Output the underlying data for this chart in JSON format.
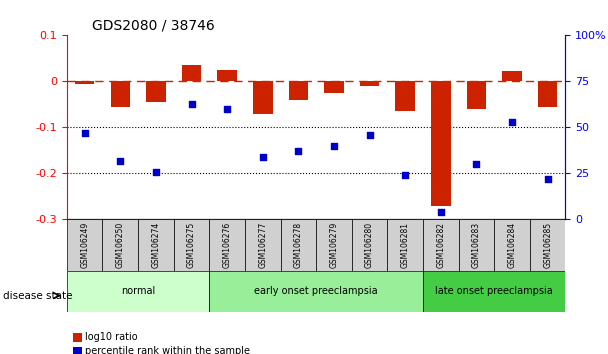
{
  "title": "GDS2080 / 38746",
  "samples": [
    "GSM106249",
    "GSM106250",
    "GSM106274",
    "GSM106275",
    "GSM106276",
    "GSM106277",
    "GSM106278",
    "GSM106279",
    "GSM106280",
    "GSM106281",
    "GSM106282",
    "GSM106283",
    "GSM106284",
    "GSM106285"
  ],
  "log10_ratio": [
    -0.005,
    -0.055,
    -0.045,
    0.035,
    0.025,
    -0.07,
    -0.04,
    -0.025,
    -0.01,
    -0.065,
    -0.27,
    -0.06,
    0.022,
    -0.055
  ],
  "percentile_rank": [
    47,
    32,
    26,
    63,
    60,
    34,
    37,
    40,
    46,
    24,
    4,
    30,
    53,
    22
  ],
  "groups": [
    {
      "label": "normal",
      "start": 0,
      "end": 4,
      "color": "#ccffcc"
    },
    {
      "label": "early onset preeclampsia",
      "start": 4,
      "end": 10,
      "color": "#99ee99"
    },
    {
      "label": "late onset preeclampsia",
      "start": 10,
      "end": 14,
      "color": "#44cc44"
    }
  ],
  "bar_color": "#cc2200",
  "point_color": "#0000cc",
  "ylim_left": [
    -0.3,
    0.1
  ],
  "ylim_right": [
    0,
    100
  ],
  "hline_y": 0,
  "dotted_lines": [
    -0.1,
    -0.2
  ],
  "right_ticks": [
    0,
    25,
    50,
    75,
    100
  ],
  "right_tick_labels": [
    "0",
    "25",
    "50",
    "75",
    "100%"
  ],
  "left_ticks": [
    -0.3,
    -0.2,
    -0.1,
    0,
    0.1
  ],
  "disease_state_label": "disease state",
  "legend_items": [
    {
      "label": "log10 ratio",
      "color": "#cc2200"
    },
    {
      "label": "percentile rank within the sample",
      "color": "#0000cc"
    }
  ]
}
